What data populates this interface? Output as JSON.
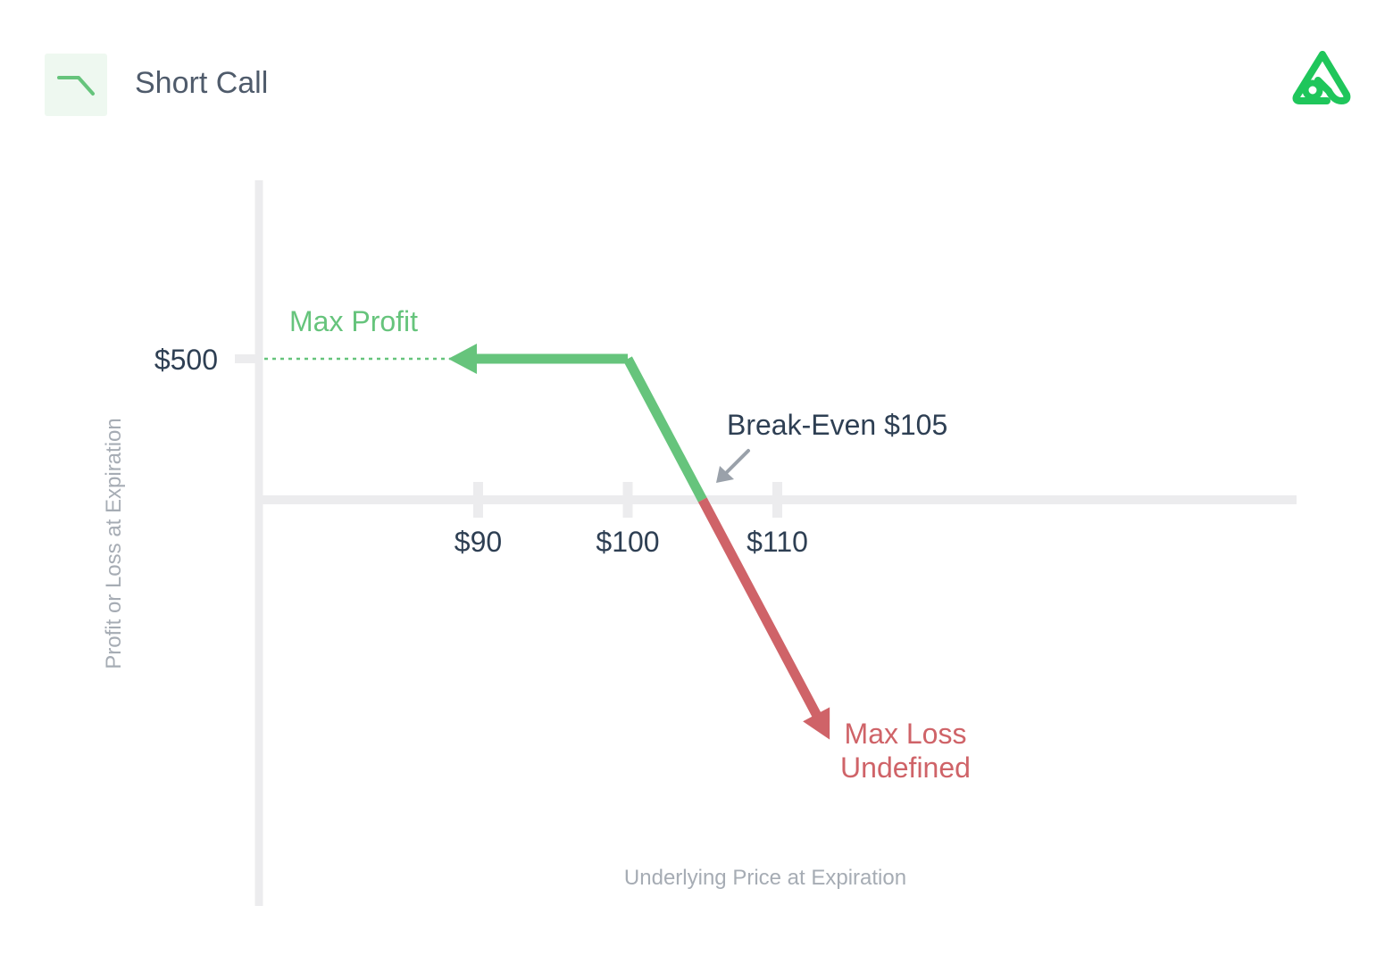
{
  "header": {
    "title": "Short Call",
    "badge_icon": "short-call-payoff-icon",
    "logo_icon": "brand-logo-icon"
  },
  "colors": {
    "profit": "#66c47c",
    "loss": "#cf6368",
    "axis": "#ececee",
    "text_dark": "#2e3f53",
    "text_muted": "#a6acb4"
  },
  "chart_data": {
    "type": "line",
    "xlabel": "Underlying Price at Expiration",
    "ylabel": "Profit or Loss at Expiration",
    "x_ticks": [
      {
        "value": 90,
        "label": "$90"
      },
      {
        "value": 100,
        "label": "$100"
      },
      {
        "value": 110,
        "label": "$110"
      }
    ],
    "y_ticks": [
      {
        "value": 500,
        "label": "$500"
      }
    ],
    "series": [
      {
        "points": [
          [
            88,
            500
          ],
          [
            100,
            500
          ],
          [
            105,
            0
          ],
          [
            113.5,
            -850
          ]
        ]
      }
    ],
    "annotations": {
      "max_profit": "Max Profit",
      "max_loss_line1": "Max Loss",
      "max_loss_line2": "Undefined",
      "break_even": "Break-Even $105"
    },
    "break_even": 105,
    "max_profit": 500
  }
}
